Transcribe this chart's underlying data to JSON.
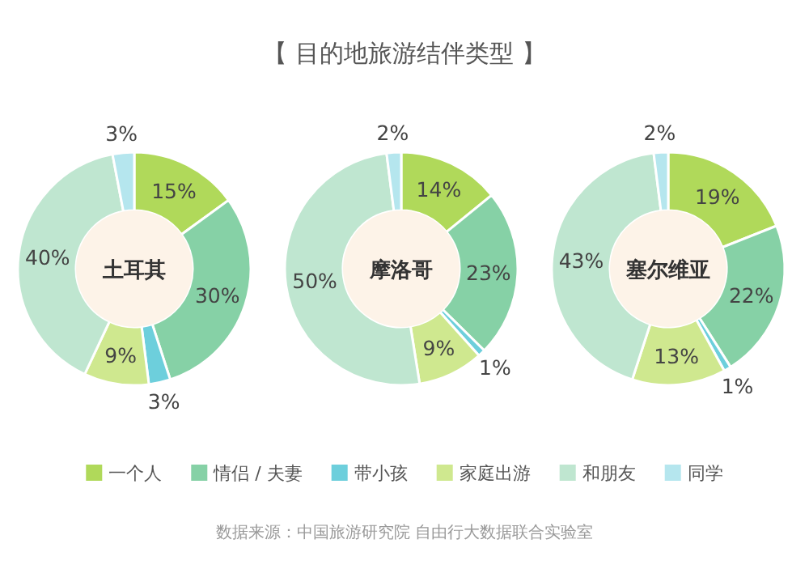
{
  "chart_data": [
    {
      "type": "donut",
      "title": "土耳其",
      "annotations": [
        "【 目的地旅游结伴类型 】",
        "数据来源：中国旅游研究院 自由行大数据联合实验室"
      ],
      "values": [
        15,
        30,
        3,
        9,
        40,
        3
      ],
      "value_labels": [
        "15%",
        "30%",
        "3%",
        "9%",
        "40%",
        "3%"
      ],
      "colors": [
        "#b0d95a",
        "#86d1a6",
        "#6dcfdc",
        "#cfe88f",
        "#bfe6d0",
        "#b5e6ee"
      ]
    },
    {
      "type": "donut",
      "title": "摩洛哥",
      "legend": "bottom",
      "categories": [
        "一个人",
        "情侣 / 夫妻",
        "带小孩",
        "家庭出游",
        "和朋友",
        "同学"
      ],
      "values": [
        14,
        23,
        1,
        9,
        50,
        2
      ],
      "value_labels": [
        "14%",
        "23%",
        "1%",
        "9%",
        "50%",
        "2%"
      ],
      "colors": [
        "#b0d95a",
        "#86d1a6",
        "#6dcfdc",
        "#cfe88f",
        "#bfe6d0",
        "#b5e6ee"
      ]
    },
    {
      "type": "donut",
      "title": "塞尔维亚",
      "values": [
        19,
        22,
        1,
        13,
        43,
        2
      ],
      "value_labels": [
        "19%",
        "22%",
        "1%",
        "13%",
        "43%",
        "2%"
      ],
      "colors": [
        "#b0d95a",
        "#86d1a6",
        "#6dcfdc",
        "#cfe88f",
        "#bfe6d0",
        "#b5e6ee"
      ]
    }
  ]
}
